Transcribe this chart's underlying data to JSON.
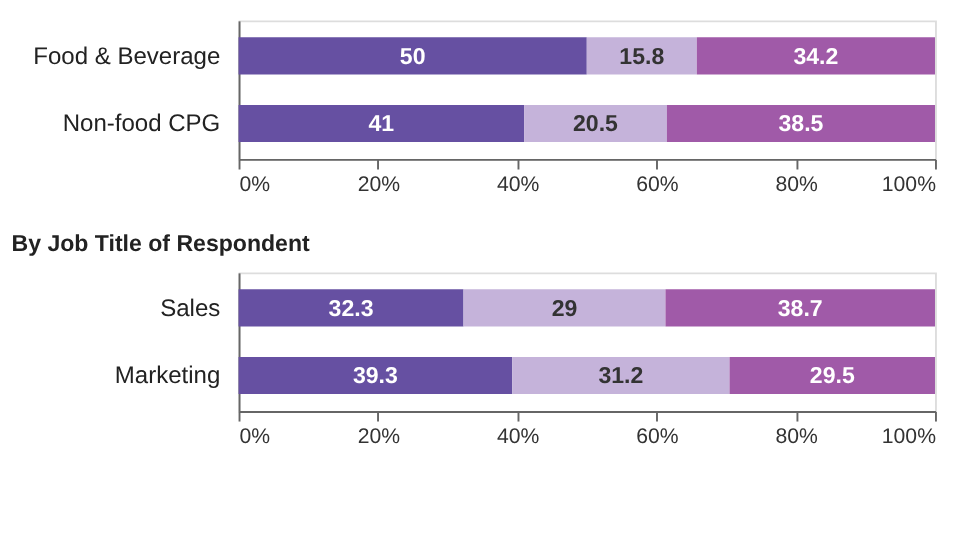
{
  "chart_data": [
    {
      "type": "bar",
      "orientation": "horizontal",
      "stacked": true,
      "data_labels": true,
      "grid": false,
      "categories": [
        "Food & Beverage",
        "Non-food CPG"
      ],
      "series": [
        {
          "color": "#6650a2",
          "values": [
            50,
            41
          ]
        },
        {
          "color": "#c5b3da",
          "values": [
            15.8,
            20.5
          ]
        },
        {
          "color": "#a05aa8",
          "values": [
            34.2,
            38.5
          ]
        }
      ],
      "xlim": [
        0,
        100
      ],
      "xticks": [
        {
          "value": 0,
          "label": "0%"
        },
        {
          "value": 20,
          "label": "20%"
        },
        {
          "value": 40,
          "label": "40%"
        },
        {
          "value": 60,
          "label": "60%"
        },
        {
          "value": 80,
          "label": "80%"
        },
        {
          "value": 100,
          "label": "100%"
        }
      ]
    },
    {
      "type": "bar",
      "orientation": "horizontal",
      "stacked": true,
      "data_labels": true,
      "grid": false,
      "title": "By Job Title of Respondent",
      "categories": [
        "Sales",
        "Marketing"
      ],
      "series": [
        {
          "color": "#6650a2",
          "values": [
            32.3,
            39.3
          ]
        },
        {
          "color": "#c5b3da",
          "values": [
            29,
            31.2
          ]
        },
        {
          "color": "#a05aa8",
          "values": [
            38.7,
            29.5
          ]
        }
      ],
      "xlim": [
        0,
        100
      ],
      "xticks": [
        {
          "value": 0,
          "label": "0%"
        },
        {
          "value": 20,
          "label": "20%"
        },
        {
          "value": 40,
          "label": "40%"
        },
        {
          "value": 60,
          "label": "60%"
        },
        {
          "value": 80,
          "label": "80%"
        },
        {
          "value": 100,
          "label": "100%"
        }
      ]
    }
  ]
}
